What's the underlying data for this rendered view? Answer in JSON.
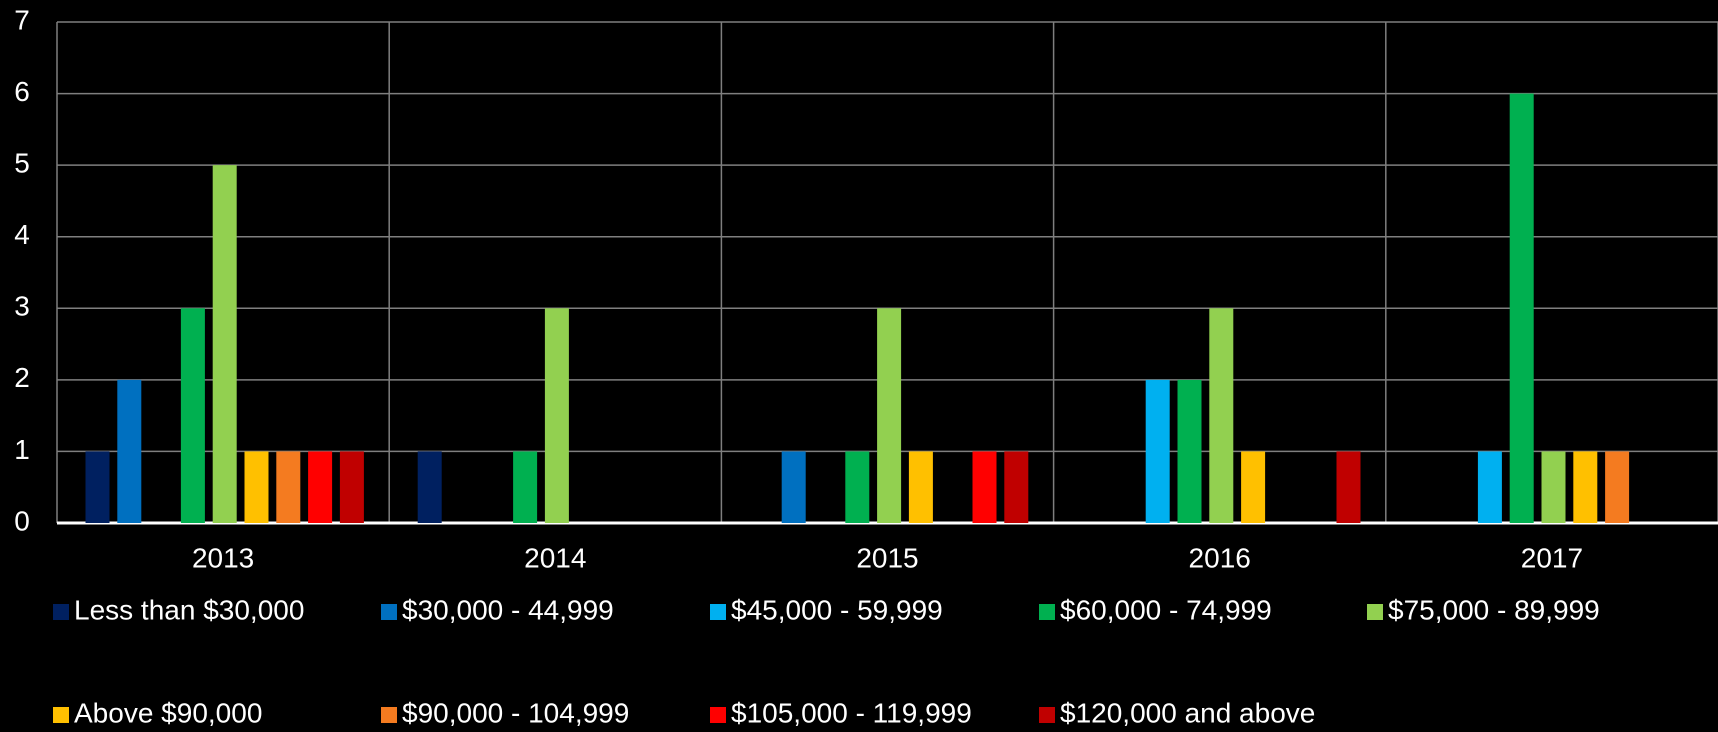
{
  "chart_data": {
    "type": "bar",
    "categories": [
      "2013",
      "2014",
      "2015",
      "2016",
      "2017"
    ],
    "series": [
      {
        "name": "Less than $30,000",
        "color": "#002060",
        "values": [
          1,
          1,
          0,
          0,
          0
        ]
      },
      {
        "name": "$30,000 - 44,999",
        "color": "#0070c0",
        "values": [
          2,
          0,
          1,
          0,
          0
        ]
      },
      {
        "name": "$45,000 - 59,999",
        "color": "#00b0f0",
        "values": [
          0,
          0,
          0,
          2,
          1
        ]
      },
      {
        "name": "$60,000 - 74,999",
        "color": "#00b050",
        "values": [
          3,
          1,
          1,
          2,
          6
        ]
      },
      {
        "name": "$75,000 - 89,999",
        "color": "#92d050",
        "values": [
          5,
          3,
          3,
          3,
          1
        ]
      },
      {
        "name": "Above $90,000",
        "color": "#ffc000",
        "values": [
          1,
          0,
          1,
          1,
          1
        ]
      },
      {
        "name": "$90,000 - 104,999",
        "color": "#f47b20",
        "values": [
          1,
          0,
          0,
          0,
          1
        ]
      },
      {
        "name": "$105,000 - 119,999",
        "color": "#ff0000",
        "values": [
          1,
          0,
          1,
          0,
          0
        ]
      },
      {
        "name": "$120,000 and above",
        "color": "#c00000",
        "values": [
          1,
          0,
          1,
          1,
          0
        ]
      }
    ],
    "ylim": [
      0,
      7
    ],
    "yticks": [
      0,
      1,
      2,
      3,
      4,
      5,
      6,
      7
    ],
    "grid": true,
    "legend": "bottom"
  }
}
